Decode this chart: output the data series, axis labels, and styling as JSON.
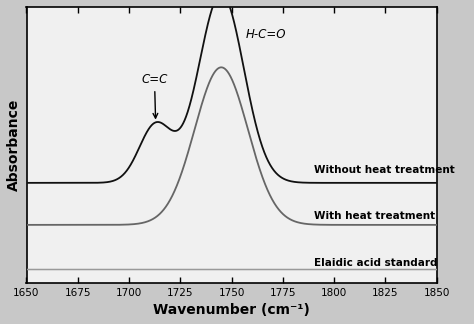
{
  "xlim": [
    1650,
    1850
  ],
  "xlabel": "Wavenumber (cm⁻¹)",
  "ylabel": "Absorbance",
  "xticks": [
    1650,
    1675,
    1700,
    1725,
    1750,
    1775,
    1800,
    1825,
    1850
  ],
  "background_color": "#c8c8c8",
  "plot_bg_color": "#f0f0f0",
  "line1_color": "#111111",
  "line2_color": "#666666",
  "line3_color": "#999999",
  "label1": "Without heat treatment",
  "label2": "With heat treatment",
  "label3": "Elaidic acid standard",
  "annot_hco": "H-C=O",
  "annot_cc": "C=C"
}
